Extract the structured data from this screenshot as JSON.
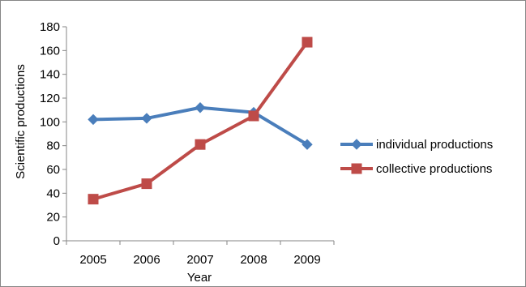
{
  "chart_data": {
    "type": "line",
    "title": "",
    "xlabel": "Year",
    "ylabel": "Scientific productions",
    "categories": [
      "2005",
      "2006",
      "2007",
      "2008",
      "2009"
    ],
    "ylim": [
      0,
      180
    ],
    "yticks": [
      0,
      20,
      40,
      60,
      80,
      100,
      120,
      140,
      160,
      180
    ],
    "grid": false,
    "legend_position": "right",
    "series": [
      {
        "name": "individual productions",
        "values": [
          102,
          103,
          112,
          108,
          81
        ],
        "color": "#4a7ebb",
        "marker": "diamond"
      },
      {
        "name": "collective productions",
        "values": [
          35,
          48,
          81,
          105,
          167
        ],
        "color": "#be4b48",
        "marker": "square"
      }
    ]
  }
}
